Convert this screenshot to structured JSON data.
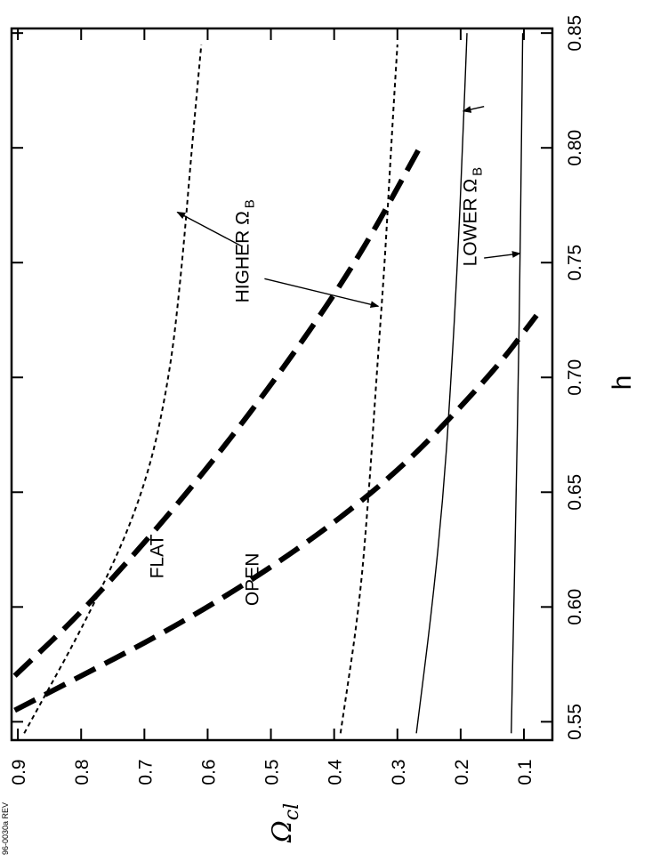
{
  "chart_data": {
    "type": "line",
    "title": "",
    "xlabel": "h",
    "ylabel": "Ω",
    "ylabel_sub": "cl",
    "xlim": [
      0.542,
      0.852
    ],
    "ylim": [
      0.055,
      0.91
    ],
    "x_ticks": [
      0.55,
      0.6,
      0.65,
      0.7,
      0.75,
      0.8,
      0.85
    ],
    "x_tick_labels": [
      "0.55",
      "0.60",
      "0.65",
      "0.70",
      "0.75",
      "0.80",
      "0.85"
    ],
    "y_ticks": [
      0.1,
      0.2,
      0.3,
      0.4,
      0.5,
      0.6,
      0.7,
      0.8,
      0.9
    ],
    "y_tick_labels": [
      "0.1",
      "0.2",
      "0.3",
      "0.4",
      "0.5",
      "0.6",
      "0.7",
      "0.8",
      "0.9"
    ],
    "grid": false,
    "series": [
      {
        "style": "dashed-thick",
        "x": [
          0.57,
          0.6,
          0.65,
          0.7,
          0.75,
          0.8
        ],
        "y": [
          0.905,
          0.79,
          0.63,
          0.49,
          0.365,
          0.265
        ]
      },
      {
        "style": "dashed-thick",
        "x": [
          0.555,
          0.6,
          0.65,
          0.7,
          0.727
        ],
        "y": [
          0.905,
          0.59,
          0.33,
          0.155,
          0.08
        ]
      },
      {
        "style": "dotted",
        "x": [
          0.545,
          0.6,
          0.65,
          0.7,
          0.75,
          0.8,
          0.845
        ],
        "y": [
          0.89,
          0.78,
          0.7,
          0.66,
          0.64,
          0.625,
          0.61
        ]
      },
      {
        "style": "dotted",
        "x": [
          0.545,
          0.6,
          0.65,
          0.7,
          0.75,
          0.8,
          0.845
        ],
        "y": [
          0.39,
          0.36,
          0.345,
          0.333,
          0.32,
          0.31,
          0.3
        ]
      },
      {
        "style": "solid-thin",
        "x": [
          0.545,
          0.6,
          0.65,
          0.7,
          0.75,
          0.8,
          0.85
        ],
        "y": [
          0.27,
          0.245,
          0.227,
          0.215,
          0.205,
          0.197,
          0.19
        ]
      },
      {
        "style": "solid-thin",
        "x": [
          0.545,
          0.6,
          0.65,
          0.7,
          0.75,
          0.8,
          0.85
        ],
        "y": [
          0.12,
          0.116,
          0.112,
          0.109,
          0.106,
          0.104,
          0.102
        ]
      }
    ],
    "annotations": [
      {
        "text": "FLAT",
        "x": 0.622,
        "y": 0.67
      },
      {
        "text": "OPEN",
        "x": 0.612,
        "y": 0.52
      },
      {
        "text": "HIGHER Ω",
        "sub": "B",
        "x": 0.755,
        "y": 0.535
      },
      {
        "text": "LOWER Ω",
        "sub": "B",
        "x": 0.77,
        "y": 0.175
      }
    ],
    "arrows": [
      {
        "from": [
          0.757,
          0.545
        ],
        "to": [
          0.772,
          0.648
        ]
      },
      {
        "from": [
          0.743,
          0.51
        ],
        "to": [
          0.731,
          0.33
        ]
      },
      {
        "from": [
          0.752,
          0.163
        ],
        "to": [
          0.754,
          0.106
        ]
      },
      {
        "from": [
          0.818,
          0.163
        ],
        "to": [
          0.816,
          0.196
        ]
      }
    ]
  },
  "footer": "96-0030a REV"
}
